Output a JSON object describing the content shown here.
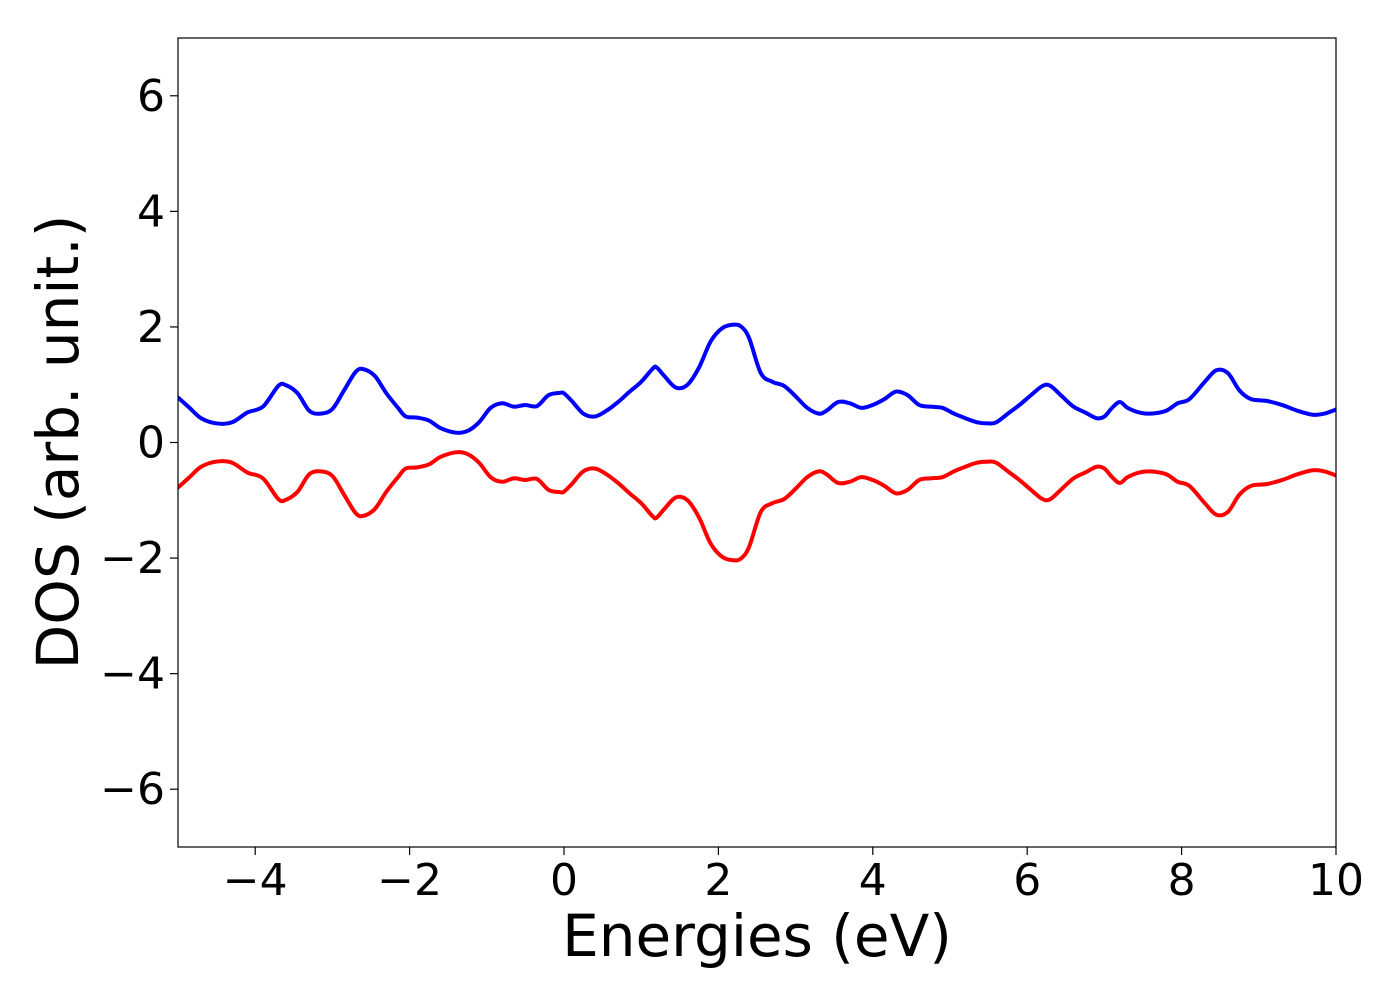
{
  "chart_data": {
    "type": "line",
    "title": "",
    "xlabel": "Energies (eV)",
    "ylabel": "DOS (arb. unit.)",
    "xlim": [
      -5,
      10
    ],
    "ylim": [
      -7,
      7
    ],
    "xticks": [
      -4,
      -2,
      0,
      2,
      4,
      6,
      8,
      10
    ],
    "xtick_labels": [
      "−4",
      "−2",
      "0",
      "2",
      "4",
      "6",
      "8",
      "10"
    ],
    "yticks": [
      -6,
      -4,
      -2,
      0,
      2,
      4,
      6
    ],
    "ytick_labels": [
      "−6",
      "−4",
      "−2",
      "0",
      "2",
      "4",
      "6"
    ],
    "grid": false,
    "legend": "none",
    "series": [
      {
        "color": "#0000ff",
        "x": [
          -5.0,
          -4.85,
          -4.7,
          -4.5,
          -4.3,
          -4.1,
          -3.9,
          -3.7,
          -3.6,
          -3.45,
          -3.3,
          -3.15,
          -3.0,
          -2.85,
          -2.7,
          -2.6,
          -2.45,
          -2.3,
          -2.15,
          -2.05,
          -1.9,
          -1.75,
          -1.6,
          -1.4,
          -1.25,
          -1.1,
          -0.95,
          -0.8,
          -0.65,
          -0.5,
          -0.35,
          -0.2,
          -0.05,
          0.0,
          0.1,
          0.25,
          0.4,
          0.55,
          0.7,
          0.85,
          1.0,
          1.15,
          1.2,
          1.3,
          1.45,
          1.6,
          1.75,
          1.9,
          2.05,
          2.2,
          2.3,
          2.4,
          2.55,
          2.7,
          2.85,
          3.0,
          3.15,
          3.3,
          3.4,
          3.55,
          3.7,
          3.85,
          4.0,
          4.15,
          4.3,
          4.45,
          4.6,
          4.75,
          4.9,
          5.05,
          5.2,
          5.35,
          5.5,
          5.6,
          5.75,
          5.9,
          6.05,
          6.2,
          6.3,
          6.45,
          6.6,
          6.75,
          6.9,
          7.0,
          7.1,
          7.2,
          7.3,
          7.45,
          7.6,
          7.8,
          7.95,
          8.1,
          8.3,
          8.45,
          8.6,
          8.75,
          8.9,
          9.1,
          9.3,
          9.5,
          9.7,
          9.85,
          10.0
        ],
        "y": [
          0.78,
          0.6,
          0.42,
          0.33,
          0.35,
          0.52,
          0.62,
          0.98,
          0.99,
          0.85,
          0.55,
          0.5,
          0.58,
          0.9,
          1.22,
          1.27,
          1.15,
          0.85,
          0.6,
          0.45,
          0.43,
          0.38,
          0.25,
          0.17,
          0.2,
          0.35,
          0.6,
          0.68,
          0.62,
          0.65,
          0.63,
          0.82,
          0.86,
          0.85,
          0.72,
          0.5,
          0.45,
          0.55,
          0.7,
          0.88,
          1.05,
          1.28,
          1.3,
          1.15,
          0.95,
          1.0,
          1.3,
          1.75,
          1.98,
          2.04,
          2.0,
          1.8,
          1.2,
          1.05,
          0.98,
          0.8,
          0.6,
          0.5,
          0.55,
          0.7,
          0.68,
          0.6,
          0.65,
          0.75,
          0.88,
          0.82,
          0.65,
          0.62,
          0.6,
          0.5,
          0.42,
          0.35,
          0.33,
          0.35,
          0.5,
          0.65,
          0.82,
          0.98,
          0.98,
          0.8,
          0.62,
          0.52,
          0.42,
          0.45,
          0.6,
          0.7,
          0.6,
          0.52,
          0.5,
          0.55,
          0.68,
          0.75,
          1.05,
          1.25,
          1.2,
          0.9,
          0.75,
          0.72,
          0.65,
          0.55,
          0.48,
          0.5,
          0.57
        ]
      },
      {
        "color": "#ff0000",
        "x": [
          -5.0,
          -4.85,
          -4.7,
          -4.5,
          -4.3,
          -4.1,
          -3.9,
          -3.7,
          -3.6,
          -3.45,
          -3.3,
          -3.15,
          -3.0,
          -2.85,
          -2.7,
          -2.6,
          -2.45,
          -2.3,
          -2.15,
          -2.05,
          -1.9,
          -1.75,
          -1.6,
          -1.4,
          -1.25,
          -1.1,
          -0.95,
          -0.8,
          -0.65,
          -0.5,
          -0.35,
          -0.2,
          -0.05,
          0.0,
          0.1,
          0.25,
          0.4,
          0.55,
          0.7,
          0.85,
          1.0,
          1.15,
          1.2,
          1.3,
          1.45,
          1.6,
          1.75,
          1.9,
          2.05,
          2.2,
          2.3,
          2.4,
          2.55,
          2.7,
          2.85,
          3.0,
          3.15,
          3.3,
          3.4,
          3.55,
          3.7,
          3.85,
          4.0,
          4.15,
          4.3,
          4.45,
          4.6,
          4.75,
          4.9,
          5.05,
          5.2,
          5.35,
          5.5,
          5.6,
          5.75,
          5.9,
          6.05,
          6.2,
          6.3,
          6.45,
          6.6,
          6.75,
          6.9,
          7.0,
          7.1,
          7.2,
          7.3,
          7.45,
          7.6,
          7.8,
          7.95,
          8.1,
          8.3,
          8.45,
          8.6,
          8.75,
          8.9,
          9.1,
          9.3,
          9.5,
          9.7,
          9.85,
          10.0
        ],
        "y": [
          -0.78,
          -0.6,
          -0.42,
          -0.33,
          -0.35,
          -0.52,
          -0.62,
          -0.98,
          -0.99,
          -0.85,
          -0.55,
          -0.5,
          -0.58,
          -0.9,
          -1.22,
          -1.27,
          -1.15,
          -0.85,
          -0.6,
          -0.45,
          -0.43,
          -0.38,
          -0.25,
          -0.17,
          -0.2,
          -0.35,
          -0.6,
          -0.68,
          -0.62,
          -0.65,
          -0.63,
          -0.82,
          -0.86,
          -0.85,
          -0.72,
          -0.5,
          -0.45,
          -0.55,
          -0.7,
          -0.88,
          -1.05,
          -1.28,
          -1.3,
          -1.15,
          -0.95,
          -1.0,
          -1.3,
          -1.75,
          -1.98,
          -2.04,
          -2.0,
          -1.8,
          -1.2,
          -1.05,
          -0.98,
          -0.8,
          -0.6,
          -0.5,
          -0.55,
          -0.7,
          -0.68,
          -0.6,
          -0.65,
          -0.75,
          -0.88,
          -0.82,
          -0.65,
          -0.62,
          -0.6,
          -0.5,
          -0.42,
          -0.35,
          -0.33,
          -0.35,
          -0.5,
          -0.65,
          -0.82,
          -0.98,
          -0.98,
          -0.8,
          -0.62,
          -0.52,
          -0.42,
          -0.45,
          -0.6,
          -0.7,
          -0.6,
          -0.52,
          -0.5,
          -0.55,
          -0.68,
          -0.75,
          -1.05,
          -1.25,
          -1.2,
          -0.9,
          -0.75,
          -0.72,
          -0.65,
          -0.55,
          -0.48,
          -0.5,
          -0.57
        ]
      }
    ]
  }
}
